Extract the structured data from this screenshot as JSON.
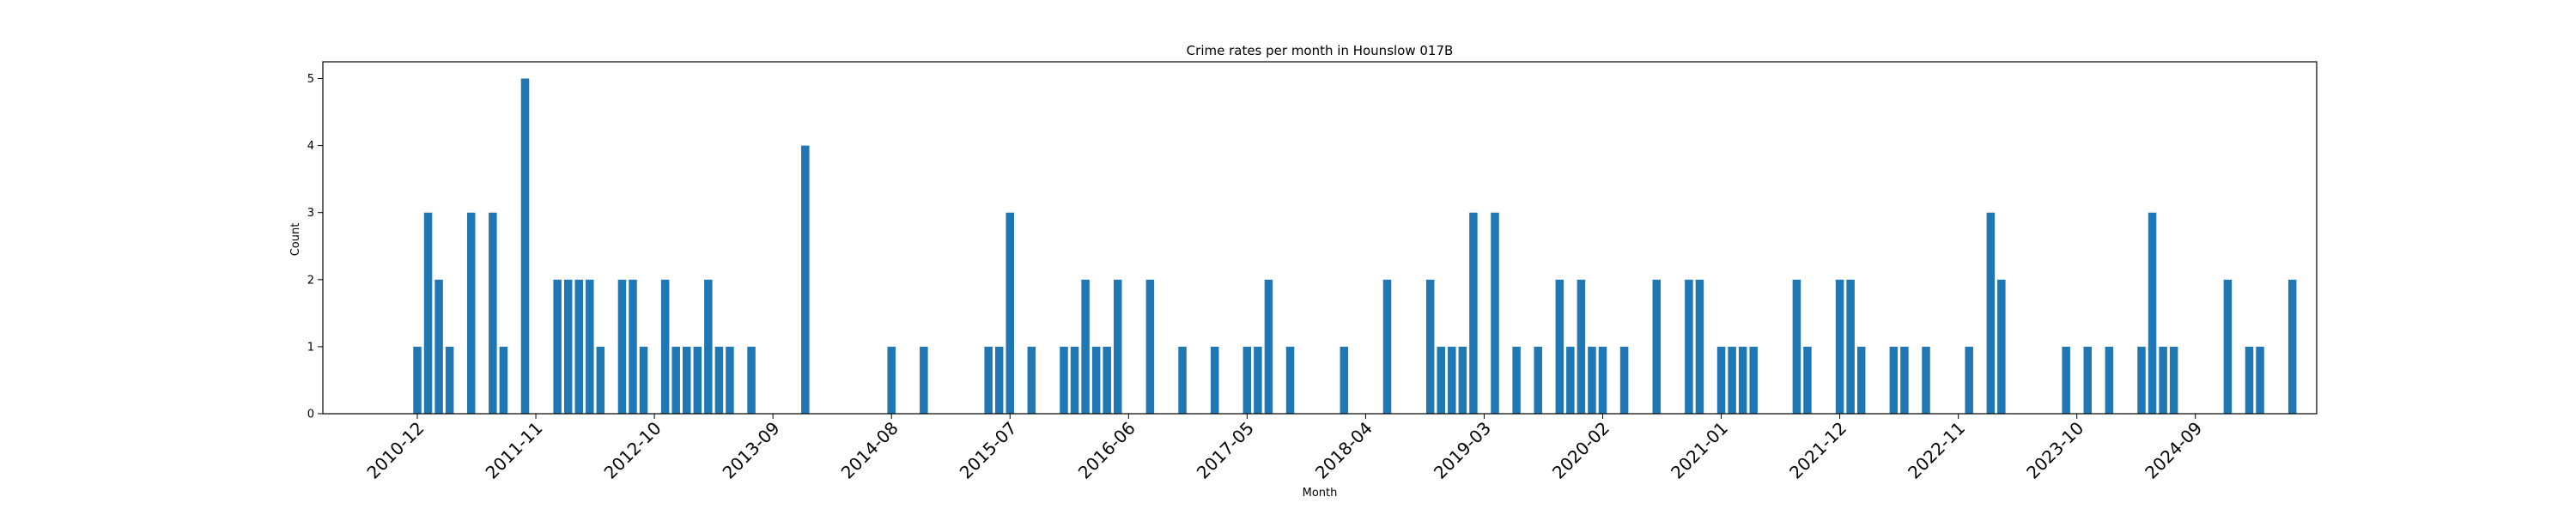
{
  "chart_data": {
    "type": "bar",
    "title": "Crime rates per month in Hounslow 017B",
    "xlabel": "Month",
    "ylabel": "Count",
    "ylim": [
      0,
      5.25
    ],
    "yticks": [
      0,
      1,
      2,
      3,
      4,
      5
    ],
    "xtick_labels": [
      "2010-12",
      "2011-11",
      "2012-10",
      "2013-09",
      "2014-08",
      "2015-07",
      "2016-06",
      "2017-05",
      "2018-04",
      "2019-03",
      "2020-02",
      "2021-01",
      "2021-12",
      "2022-11",
      "2023-10",
      "2024-09"
    ],
    "bar_color": "#1f77b4",
    "grid": false,
    "data": [
      [
        "2010-12",
        1
      ],
      [
        "2011-01",
        3
      ],
      [
        "2011-02",
        2
      ],
      [
        "2011-03",
        1
      ],
      [
        "2011-05",
        3
      ],
      [
        "2011-07",
        3
      ],
      [
        "2011-08",
        1
      ],
      [
        "2011-10",
        5
      ],
      [
        "2012-01",
        2
      ],
      [
        "2012-02",
        2
      ],
      [
        "2012-03",
        2
      ],
      [
        "2012-04",
        2
      ],
      [
        "2012-05",
        1
      ],
      [
        "2012-07",
        2
      ],
      [
        "2012-08",
        2
      ],
      [
        "2012-09",
        1
      ],
      [
        "2012-11",
        2
      ],
      [
        "2012-12",
        1
      ],
      [
        "2013-01",
        1
      ],
      [
        "2013-02",
        1
      ],
      [
        "2013-03",
        2
      ],
      [
        "2013-04",
        1
      ],
      [
        "2013-05",
        1
      ],
      [
        "2013-07",
        1
      ],
      [
        "2013-12",
        4
      ],
      [
        "2014-08",
        1
      ],
      [
        "2014-11",
        1
      ],
      [
        "2015-05",
        1
      ],
      [
        "2015-06",
        1
      ],
      [
        "2015-07",
        3
      ],
      [
        "2015-09",
        1
      ],
      [
        "2015-12",
        1
      ],
      [
        "2016-01",
        1
      ],
      [
        "2016-02",
        2
      ],
      [
        "2016-03",
        1
      ],
      [
        "2016-04",
        1
      ],
      [
        "2016-05",
        2
      ],
      [
        "2016-08",
        2
      ],
      [
        "2016-11",
        1
      ],
      [
        "2017-02",
        1
      ],
      [
        "2017-05",
        1
      ],
      [
        "2017-06",
        1
      ],
      [
        "2017-07",
        2
      ],
      [
        "2017-09",
        1
      ],
      [
        "2018-02",
        1
      ],
      [
        "2018-06",
        2
      ],
      [
        "2018-10",
        2
      ],
      [
        "2018-11",
        1
      ],
      [
        "2018-12",
        1
      ],
      [
        "2019-01",
        1
      ],
      [
        "2019-02",
        3
      ],
      [
        "2019-04",
        3
      ],
      [
        "2019-06",
        1
      ],
      [
        "2019-08",
        1
      ],
      [
        "2019-10",
        2
      ],
      [
        "2019-11",
        1
      ],
      [
        "2019-12",
        2
      ],
      [
        "2020-01",
        1
      ],
      [
        "2020-02",
        1
      ],
      [
        "2020-04",
        1
      ],
      [
        "2020-07",
        2
      ],
      [
        "2020-10",
        2
      ],
      [
        "2020-11",
        2
      ],
      [
        "2021-01",
        1
      ],
      [
        "2021-02",
        1
      ],
      [
        "2021-03",
        1
      ],
      [
        "2021-04",
        1
      ],
      [
        "2021-08",
        2
      ],
      [
        "2021-09",
        1
      ],
      [
        "2021-12",
        2
      ],
      [
        "2022-01",
        2
      ],
      [
        "2022-02",
        1
      ],
      [
        "2022-05",
        1
      ],
      [
        "2022-06",
        1
      ],
      [
        "2022-08",
        1
      ],
      [
        "2022-12",
        1
      ],
      [
        "2023-02",
        3
      ],
      [
        "2023-03",
        2
      ],
      [
        "2023-09",
        1
      ],
      [
        "2023-11",
        1
      ],
      [
        "2024-01",
        1
      ],
      [
        "2024-04",
        1
      ],
      [
        "2024-05",
        3
      ],
      [
        "2024-06",
        1
      ],
      [
        "2024-07",
        1
      ],
      [
        "2024-12",
        2
      ],
      [
        "2025-02",
        1
      ],
      [
        "2025-03",
        1
      ],
      [
        "2025-06",
        2
      ]
    ]
  }
}
